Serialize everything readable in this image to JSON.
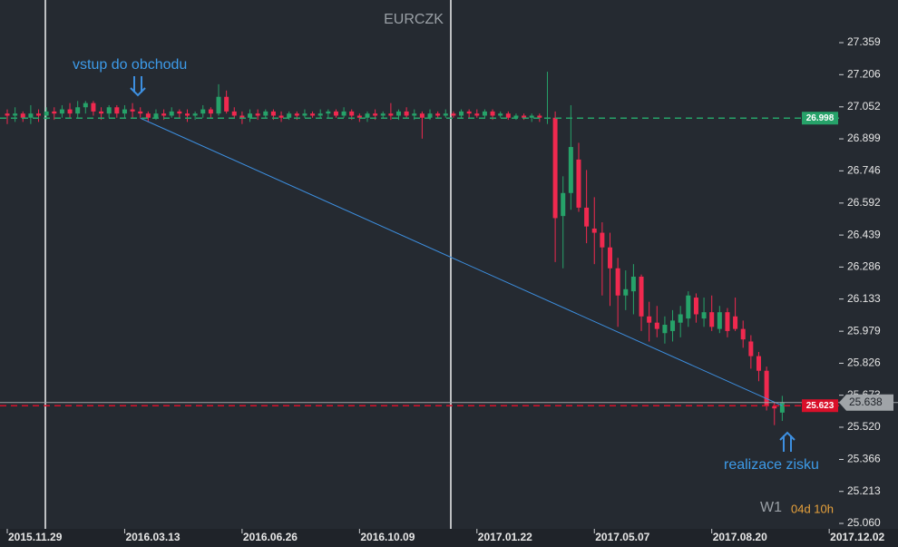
{
  "chart_data": {
    "type": "candlestick",
    "title": "EURCZK",
    "categories": [
      "2015.11.29",
      null,
      null,
      null,
      null,
      null,
      null,
      null,
      null,
      null,
      null,
      null,
      null,
      null,
      null,
      "2016.03.13",
      null,
      null,
      null,
      null,
      null,
      null,
      null,
      null,
      null,
      null,
      null,
      null,
      null,
      null,
      "2016.06.26",
      null,
      null,
      null,
      null,
      null,
      null,
      null,
      null,
      null,
      null,
      null,
      null,
      null,
      null,
      "2016.10.09",
      null,
      null,
      null,
      null,
      null,
      null,
      null,
      null,
      null,
      null,
      null,
      null,
      null,
      null,
      "2017.01.22",
      null,
      null,
      null,
      null,
      null,
      null,
      null,
      null,
      null,
      null,
      null,
      null,
      null,
      null,
      "2017.05.07",
      null,
      null,
      null,
      null,
      null,
      null,
      null,
      null,
      null,
      null,
      null,
      null,
      null,
      null,
      "2017.08.20",
      null,
      null,
      null,
      null,
      null,
      null,
      null,
      null,
      null,
      null,
      null,
      null,
      null,
      null,
      "2017.12.02"
    ],
    "open": [
      27.02,
      27.01,
      27.02,
      27.0,
      27.02,
      27.01,
      27.03,
      27.02,
      27.04,
      27.02,
      27.05,
      27.07,
      27.03,
      27.02,
      27.05,
      27.02,
      27.04,
      27.03,
      27.02,
      27.0,
      27.02,
      27.01,
      27.03,
      27.02,
      27.01,
      27.02,
      27.04,
      27.02,
      27.1,
      27.03,
      27.01,
      27.0,
      27.02,
      27.01,
      27.03,
      27.01,
      27.0,
      27.02,
      27.01,
      27.02,
      27.01,
      27.02,
      27.03,
      27.01,
      27.03,
      27.01,
      27.0,
      27.02,
      27.01,
      27.02,
      27.01,
      27.03,
      27.01,
      27.02,
      27.0,
      27.02,
      27.01,
      27.02,
      27.01,
      27.03,
      27.02,
      27.01,
      27.03,
      27.01,
      27.02,
      27.0,
      27.01,
      27.0,
      27.01,
      27.0,
      27.0,
      26.53,
      26.64,
      26.8,
      26.57,
      26.47,
      26.45,
      26.38,
      26.28,
      26.15,
      26.17,
      26.24,
      26.05,
      26.02,
      25.97,
      25.98,
      26.02,
      26.04,
      26.14,
      26.04,
      26.07,
      25.99,
      26.07,
      26.05,
      25.99,
      25.93,
      25.86,
      25.79,
      25.62,
      25.59,
      null,
      null,
      null,
      null,
      null,
      null
    ],
    "high": [
      27.04,
      27.05,
      27.03,
      27.06,
      27.04,
      27.05,
      27.05,
      27.06,
      27.07,
      27.08,
      27.08,
      27.08,
      27.05,
      27.06,
      27.06,
      27.06,
      27.07,
      27.05,
      27.03,
      27.04,
      27.04,
      27.05,
      27.04,
      27.04,
      27.03,
      27.06,
      27.05,
      27.16,
      27.13,
      27.05,
      27.03,
      27.04,
      27.04,
      27.04,
      27.04,
      27.03,
      27.03,
      27.03,
      27.04,
      27.03,
      27.04,
      27.04,
      27.04,
      27.05,
      27.04,
      27.02,
      27.03,
      27.04,
      27.03,
      27.07,
      27.04,
      27.05,
      27.04,
      27.03,
      27.04,
      27.03,
      27.04,
      27.03,
      27.04,
      27.04,
      27.04,
      27.04,
      27.04,
      27.03,
      27.03,
      27.02,
      27.02,
      27.02,
      27.02,
      27.22,
      27.03,
      26.72,
      27.06,
      26.88,
      26.75,
      26.62,
      26.5,
      26.45,
      26.33,
      26.27,
      26.3,
      26.25,
      26.12,
      26.1,
      26.05,
      26.08,
      26.1,
      26.17,
      26.16,
      26.14,
      26.15,
      26.1,
      26.09,
      26.14,
      26.03,
      25.96,
      25.88,
      25.81,
      25.64,
      25.67,
      null,
      null,
      null,
      null,
      null,
      null
    ],
    "low": [
      26.97,
      26.98,
      26.98,
      26.97,
      26.98,
      26.99,
      26.99,
      27.0,
      27.0,
      27.0,
      27.02,
      27.01,
      26.99,
      27.0,
      27.0,
      27.0,
      27.0,
      27.0,
      26.98,
      26.99,
      26.99,
      27.0,
      27.0,
      26.98,
      26.99,
      27.0,
      27.0,
      27.01,
      27.02,
      27.0,
      26.97,
      26.98,
      26.99,
      27.0,
      26.99,
      26.98,
      26.99,
      26.99,
      27.0,
      27.0,
      27.0,
      27.0,
      27.0,
      27.0,
      26.99,
      26.98,
      26.98,
      26.99,
      27.0,
      26.99,
      26.99,
      27.0,
      26.99,
      26.9,
      26.99,
      27.0,
      27.0,
      27.0,
      27.0,
      27.0,
      27.0,
      27.0,
      26.99,
      27.0,
      26.99,
      26.99,
      26.99,
      26.98,
      26.98,
      26.97,
      26.31,
      26.28,
      26.56,
      26.55,
      26.4,
      26.3,
      26.15,
      26.1,
      26.0,
      26.08,
      26.06,
      25.98,
      25.93,
      25.95,
      25.92,
      25.93,
      25.95,
      26.0,
      26.02,
      26.0,
      25.98,
      25.97,
      25.95,
      25.98,
      25.9,
      25.8,
      25.74,
      25.6,
      25.53,
      25.55,
      null,
      null,
      null,
      null,
      null,
      null
    ],
    "close": [
      27.01,
      27.02,
      27.0,
      27.02,
      27.01,
      27.03,
      27.02,
      27.04,
      27.02,
      27.05,
      27.07,
      27.03,
      27.02,
      27.05,
      27.02,
      27.04,
      27.03,
      27.02,
      27.0,
      27.02,
      27.01,
      27.03,
      27.02,
      27.01,
      27.02,
      27.04,
      27.02,
      27.1,
      27.03,
      27.01,
      27.0,
      27.02,
      27.01,
      27.03,
      27.01,
      27.0,
      27.02,
      27.01,
      27.02,
      27.01,
      27.02,
      27.03,
      27.01,
      27.03,
      27.01,
      27.0,
      27.02,
      27.01,
      27.02,
      27.01,
      27.03,
      27.01,
      27.02,
      27.0,
      27.02,
      27.01,
      27.02,
      27.01,
      27.03,
      27.02,
      27.01,
      27.03,
      27.01,
      27.02,
      27.0,
      27.01,
      27.0,
      27.01,
      27.0,
      27.0,
      26.52,
      26.64,
      26.86,
      26.57,
      26.48,
      26.45,
      26.38,
      26.28,
      26.15,
      26.18,
      26.24,
      26.05,
      26.02,
      25.99,
      26.01,
      26.03,
      26.06,
      26.15,
      26.06,
      26.07,
      26.0,
      26.07,
      25.98,
      25.99,
      25.94,
      25.86,
      25.79,
      25.62,
      25.61,
      25.638,
      null,
      null,
      null,
      null,
      null,
      null
    ],
    "up_color": "#26a269",
    "down_color": "#f0294f",
    "ylim": [
      25.034,
      27.563
    ],
    "yticks": [
      27.359,
      27.206,
      27.052,
      26.899,
      26.746,
      26.592,
      26.439,
      26.286,
      26.133,
      25.979,
      25.826,
      25.673,
      {
        "value": 25.52,
        "label": "25.520"
      },
      25.366,
      25.213,
      {
        "value": 25.06,
        "label": "25.060"
      }
    ],
    "price_lines": [
      {
        "value": 26.998,
        "color": "#26a269",
        "dashed": true
      },
      {
        "value": 25.623,
        "color": "#d9102a",
        "dashed": true
      },
      {
        "value": 25.638,
        "color": "#a0a4a8",
        "dashed": false
      }
    ],
    "trendline": {
      "x": [
        17,
        99
      ],
      "y": [
        26.998,
        25.623
      ],
      "color": "#3d8fe0"
    },
    "annotations": [
      {
        "text": "vstup do obchodu"
      },
      {
        "text": "realizace zisku"
      }
    ],
    "timeframe": "W1",
    "countdown": "04d 10h"
  }
}
